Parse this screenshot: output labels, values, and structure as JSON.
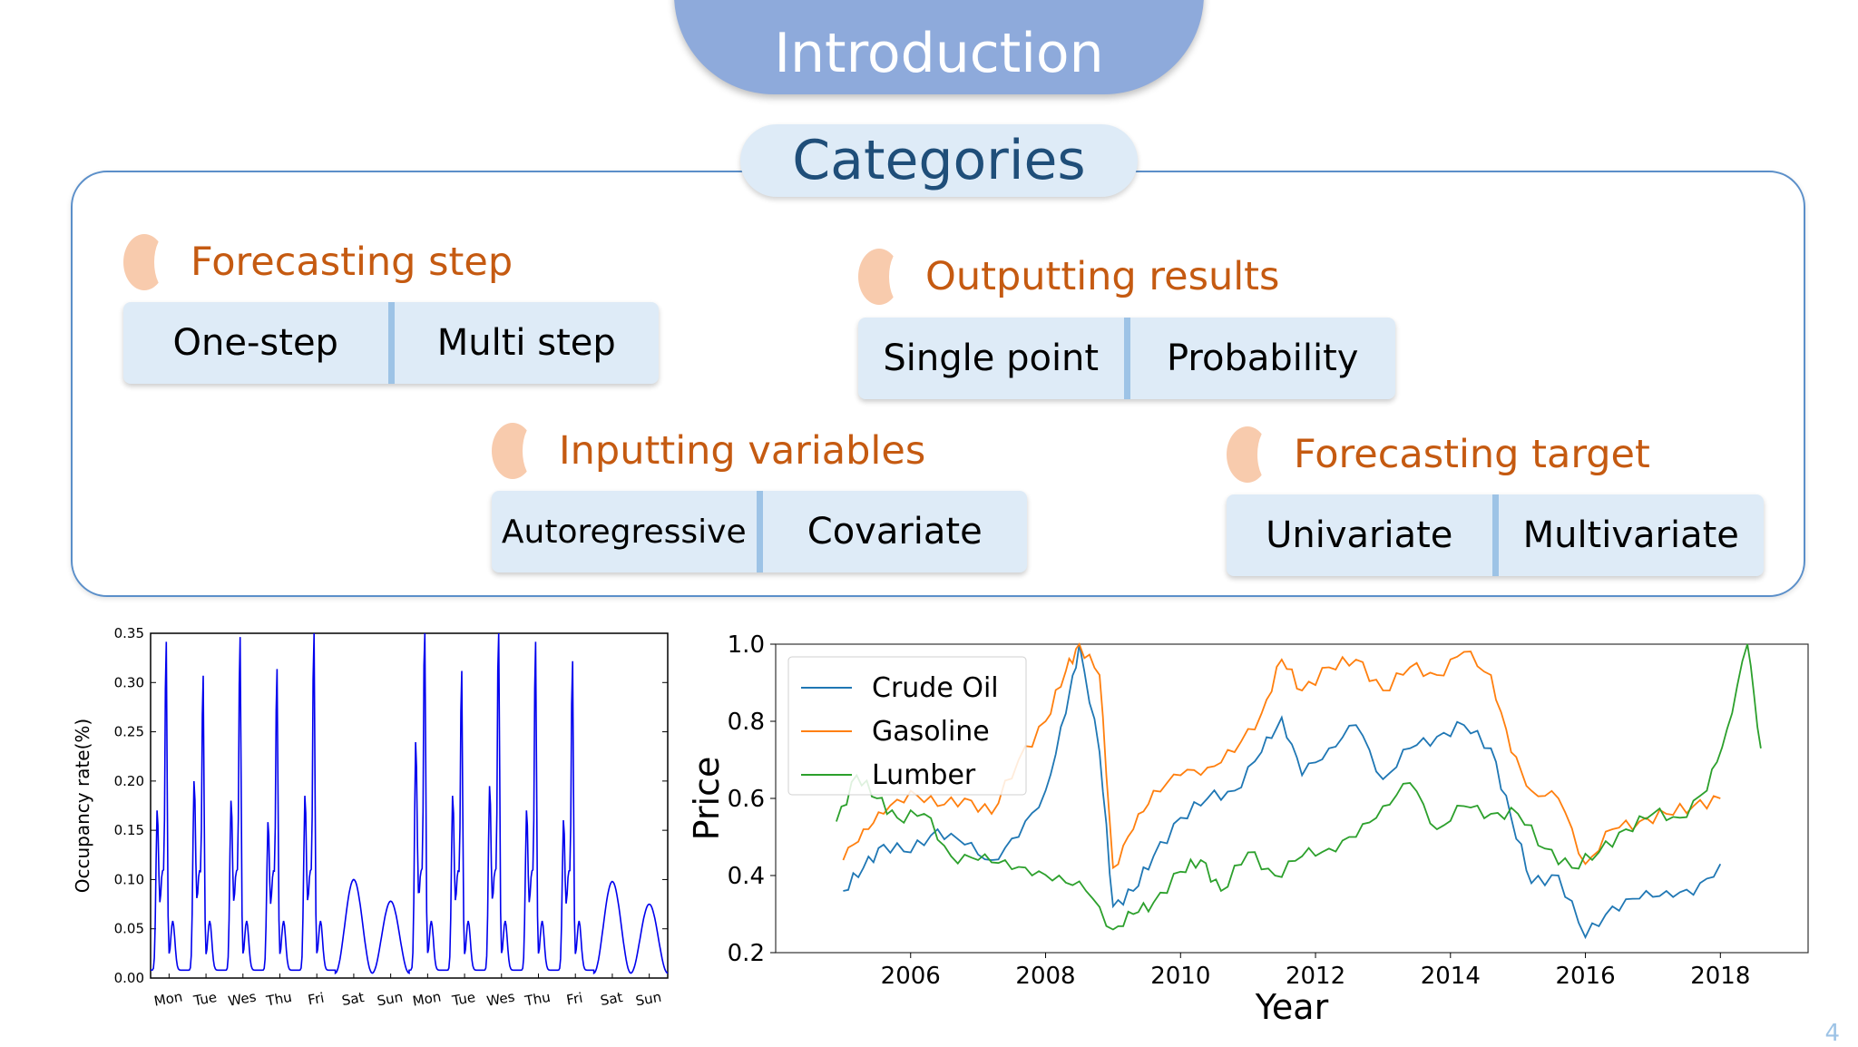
{
  "header": {
    "title": "Introduction"
  },
  "section": {
    "title": "Categories"
  },
  "categories": [
    {
      "title": "Forecasting step",
      "options": [
        "One-step",
        "Multi step"
      ]
    },
    {
      "title": "Outputting results",
      "options": [
        "Single point",
        "Probability"
      ]
    },
    {
      "title": "Inputting variables",
      "options": [
        "Autoregressive",
        "Covariate"
      ]
    },
    {
      "title": "Forecasting target",
      "options": [
        "Univariate",
        "Multivariate"
      ]
    }
  ],
  "page_number": "4",
  "colors": {
    "banner": "#8eaadb",
    "accent_orange": "#c55a11",
    "option_bg": "#deebf7",
    "panel_border": "#5b8fc9"
  },
  "chart_data": [
    {
      "type": "line",
      "ylabel": "Occupancy rate(%)",
      "xlabel": "",
      "ylim": [
        0,
        0.35
      ],
      "yticks": [
        "0.00",
        "0.05",
        "0.10",
        "0.15",
        "0.20",
        "0.25",
        "0.30",
        "0.35"
      ],
      "categories": [
        "Mon",
        "Tue",
        "Wes",
        "Thu",
        "Fri",
        "Sat",
        "Sun",
        "Mon",
        "Tue",
        "Wes",
        "Thu",
        "Fri",
        "Sat",
        "Sun"
      ],
      "series": [
        {
          "color": "#0000ee",
          "daily_peaks": [
            0.32,
            0.285,
            0.325,
            0.292,
            0.332,
            0.1,
            0.078,
            0.35,
            0.29,
            0.343,
            0.32,
            0.3,
            0.098,
            0.075
          ],
          "daily_secondary": [
            0.16,
            0.19,
            0.17,
            0.148,
            0.175,
            0,
            0,
            0.23,
            0.175,
            0.185,
            0.16,
            0.15,
            0,
            0
          ]
        }
      ]
    },
    {
      "type": "line",
      "xlabel": "Year",
      "ylabel": "Price",
      "xlim": [
        2004,
        2019.3
      ],
      "ylim": [
        0.2,
        1.0
      ],
      "xticks": [
        "2006",
        "2008",
        "2010",
        "2012",
        "2014",
        "2016",
        "2018"
      ],
      "yticks": [
        "0.2",
        "0.4",
        "0.6",
        "0.8",
        "1.0"
      ],
      "legend": "top-left",
      "series": [
        {
          "name": "Crude Oil",
          "color": "#1f77b4",
          "x": [
            2005.0,
            2005.3,
            2005.6,
            2006.0,
            2006.4,
            2006.8,
            2007.2,
            2007.6,
            2008.0,
            2008.3,
            2008.5,
            2008.8,
            2009.0,
            2009.3,
            2009.6,
            2010.0,
            2010.4,
            2010.8,
            2011.2,
            2011.5,
            2011.8,
            2012.2,
            2012.6,
            2013.0,
            2013.4,
            2013.8,
            2014.2,
            2014.6,
            2014.9,
            2015.2,
            2015.6,
            2016.0,
            2016.4,
            2016.8,
            2017.2,
            2017.6,
            2018.0
          ],
          "y": [
            0.36,
            0.42,
            0.48,
            0.46,
            0.52,
            0.48,
            0.44,
            0.5,
            0.62,
            0.82,
            1.0,
            0.72,
            0.32,
            0.36,
            0.45,
            0.55,
            0.6,
            0.62,
            0.72,
            0.81,
            0.66,
            0.73,
            0.79,
            0.65,
            0.73,
            0.76,
            0.79,
            0.73,
            0.55,
            0.38,
            0.4,
            0.24,
            0.32,
            0.34,
            0.36,
            0.35,
            0.43
          ]
        },
        {
          "name": "Gasoline",
          "color": "#ff7f0e",
          "x": [
            2005.0,
            2005.3,
            2005.6,
            2006.0,
            2006.4,
            2006.8,
            2007.2,
            2007.6,
            2008.0,
            2008.3,
            2008.5,
            2008.8,
            2009.0,
            2009.3,
            2009.6,
            2010.0,
            2010.4,
            2010.8,
            2011.2,
            2011.5,
            2011.8,
            2012.2,
            2012.6,
            2013.0,
            2013.4,
            2013.8,
            2014.2,
            2014.6,
            2014.9,
            2015.2,
            2015.6,
            2016.0,
            2016.4,
            2016.8,
            2017.2,
            2017.6,
            2018.0
          ],
          "y": [
            0.44,
            0.52,
            0.56,
            0.62,
            0.58,
            0.6,
            0.56,
            0.7,
            0.8,
            0.93,
            1.0,
            0.92,
            0.42,
            0.52,
            0.62,
            0.66,
            0.68,
            0.72,
            0.82,
            0.96,
            0.88,
            0.94,
            0.96,
            0.88,
            0.94,
            0.92,
            0.98,
            0.92,
            0.72,
            0.62,
            0.6,
            0.43,
            0.52,
            0.54,
            0.56,
            0.58,
            0.6
          ]
        },
        {
          "name": "Lumber",
          "color": "#2ca02c",
          "x": [
            2004.9,
            2005.2,
            2005.5,
            2005.8,
            2006.2,
            2006.6,
            2007.0,
            2007.4,
            2007.8,
            2008.2,
            2008.6,
            2009.0,
            2009.3,
            2009.6,
            2010.0,
            2010.3,
            2010.6,
            2011.0,
            2011.4,
            2011.8,
            2012.2,
            2012.6,
            2013.0,
            2013.4,
            2013.8,
            2014.2,
            2014.6,
            2015.0,
            2015.4,
            2015.8,
            2016.2,
            2016.6,
            2017.0,
            2017.4,
            2017.8,
            2018.1,
            2018.4,
            2018.6
          ],
          "y": [
            0.54,
            0.66,
            0.6,
            0.55,
            0.56,
            0.45,
            0.44,
            0.44,
            0.4,
            0.4,
            0.36,
            0.26,
            0.3,
            0.33,
            0.41,
            0.44,
            0.36,
            0.46,
            0.4,
            0.45,
            0.47,
            0.5,
            0.58,
            0.64,
            0.52,
            0.58,
            0.56,
            0.56,
            0.47,
            0.42,
            0.46,
            0.52,
            0.56,
            0.55,
            0.62,
            0.78,
            1.0,
            0.73
          ]
        }
      ]
    }
  ]
}
